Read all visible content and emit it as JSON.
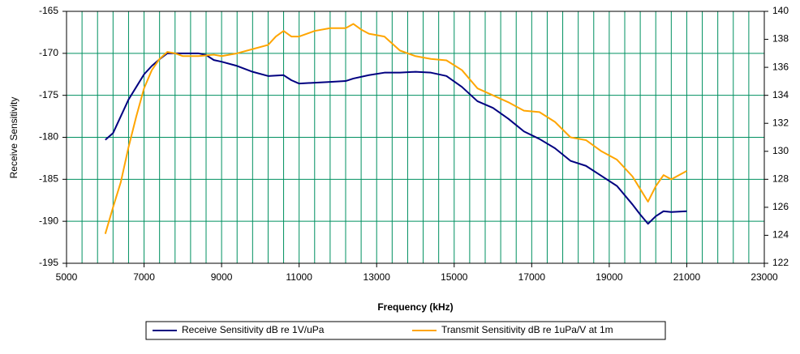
{
  "chart_data": {
    "type": "line",
    "xlabel": "Frequency (kHz)",
    "ylabel": "Receive Sensitivity",
    "xlim": [
      5000,
      23000
    ],
    "xticks": [
      5000,
      7000,
      9000,
      11000,
      13000,
      15000,
      17000,
      19000,
      21000,
      23000
    ],
    "xgrid": [
      5400,
      5800,
      6200,
      6600,
      7400,
      7800,
      8200,
      8600,
      9400,
      9800,
      10200,
      10600,
      11400,
      11800,
      12200,
      12600,
      13400,
      13800,
      14200,
      14600,
      15400,
      15800,
      16200,
      16600,
      17400,
      17800,
      18200,
      18600,
      19400,
      19800,
      20200,
      20600,
      21400,
      21800,
      22200,
      22600
    ],
    "ylim": [
      -195,
      -165
    ],
    "yticks": [
      -195,
      -190,
      -185,
      -180,
      -175,
      -170,
      -165
    ],
    "y2lim": [
      122,
      140
    ],
    "y2ticks": [
      122,
      124,
      126,
      128,
      130,
      132,
      134,
      136,
      138,
      140
    ],
    "grid": true,
    "grid_color": "#009060",
    "legend": "bottom",
    "series": [
      {
        "name": "Receive Sensitivity dB re 1V/uPa",
        "color": "#000080",
        "x": [
          6000,
          6200,
          6400,
          6600,
          6800,
          7000,
          7200,
          7400,
          7600,
          7800,
          8000,
          8400,
          8600,
          8800,
          9000,
          9400,
          9800,
          10200,
          10600,
          10800,
          11000,
          11400,
          11800,
          12200,
          12400,
          12800,
          13200,
          13600,
          14000,
          14400,
          14800,
          15200,
          15600,
          16000,
          16400,
          16800,
          17200,
          17600,
          18000,
          18400,
          18800,
          19200,
          19600,
          19800,
          20000,
          20200,
          20400,
          20600,
          21000
        ],
        "values": [
          -180.3,
          -179.5,
          -177.5,
          -175.5,
          -174,
          -172.5,
          -171.5,
          -170.7,
          -170,
          -170,
          -170,
          -170,
          -170.2,
          -170.8,
          -171,
          -171.5,
          -172.2,
          -172.7,
          -172.6,
          -173.2,
          -173.6,
          -173.5,
          -173.4,
          -173.3,
          -173,
          -172.6,
          -172.3,
          -172.3,
          -172.2,
          -172.3,
          -172.7,
          -174,
          -175.7,
          -176.5,
          -177.8,
          -179.3,
          -180.2,
          -181.3,
          -182.8,
          -183.4,
          -184.6,
          -185.8,
          -188,
          -189.2,
          -190.3,
          -189.4,
          -188.8,
          -188.9,
          -188.8
        ]
      },
      {
        "name": "Transmit Sensitivity dB re 1uPa/V at 1m",
        "color": "#ffa500",
        "axis": "y2",
        "x": [
          6000,
          6200,
          6400,
          6600,
          6800,
          7000,
          7200,
          7400,
          7600,
          7800,
          8000,
          8400,
          8800,
          9000,
          9400,
          9800,
          10200,
          10400,
          10600,
          10800,
          11000,
          11400,
          11800,
          12200,
          12400,
          12600,
          12800,
          13200,
          13600,
          14000,
          14400,
          14800,
          15200,
          15600,
          16000,
          16400,
          16800,
          17200,
          17600,
          18000,
          18400,
          18800,
          19200,
          19600,
          19800,
          20000,
          20200,
          20400,
          20600,
          21000
        ],
        "values": [
          124.1,
          126,
          127.8,
          130.3,
          132.5,
          134.5,
          135.8,
          136.6,
          137.1,
          137,
          136.8,
          136.8,
          136.9,
          136.8,
          137,
          137.3,
          137.6,
          138.2,
          138.6,
          138.2,
          138.2,
          138.6,
          138.8,
          138.8,
          139.1,
          138.7,
          138.4,
          138.2,
          137.2,
          136.8,
          136.6,
          136.5,
          135.8,
          134.5,
          134,
          133.5,
          132.9,
          132.8,
          132.1,
          131,
          130.8,
          130,
          129.4,
          128.2,
          127.3,
          126.4,
          127.5,
          128.3,
          128,
          128.6
        ]
      }
    ]
  }
}
